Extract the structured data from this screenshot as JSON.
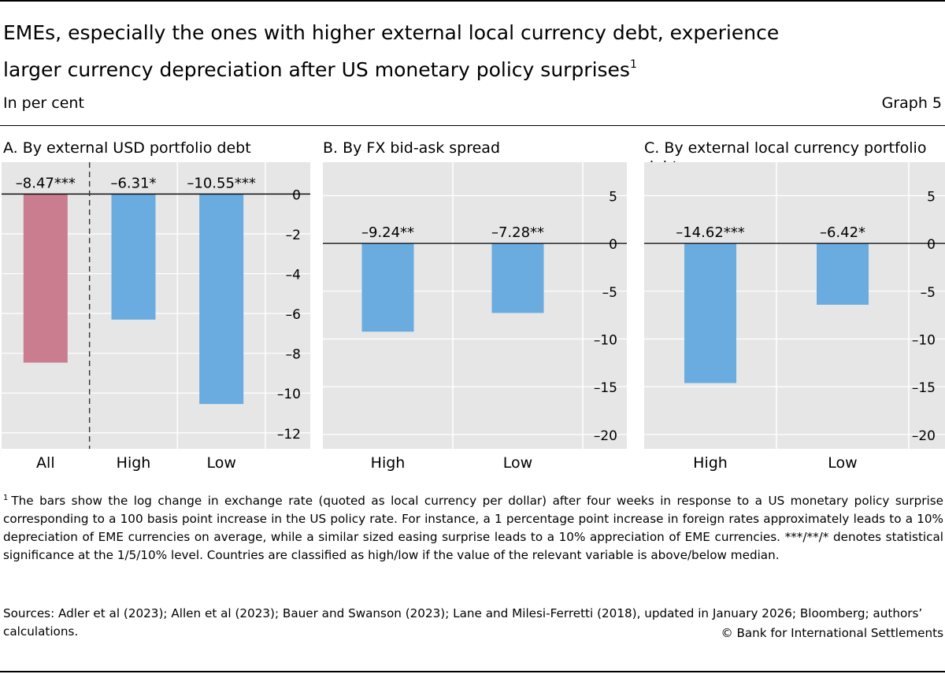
{
  "header": {
    "title_line1": "EMEs, especially the ones with higher external local currency debt, experience",
    "title_line2": "larger currency depreciation after US monetary policy surprises",
    "title_footnote_ref": "1",
    "subtitle": "In per cent",
    "graph_number": "Graph 5"
  },
  "colors": {
    "panel_bg": "#e6e6e6",
    "bar_blue": "#6aace0",
    "bar_pink": "#c97d8e"
  },
  "chart_data": [
    {
      "type": "bar",
      "title": "A. By external USD portfolio debt",
      "categories": [
        "All",
        "High",
        "Low"
      ],
      "values": [
        -8.47,
        -6.31,
        -10.55
      ],
      "value_labels": [
        "–8.47***",
        "–6.31*",
        "–10.55***"
      ],
      "bar_colors": [
        "pink",
        "blue",
        "blue"
      ],
      "ylim": [
        -12.8,
        1.6
      ],
      "yticks": [
        0,
        -2,
        -4,
        -6,
        -8,
        -10,
        -12
      ],
      "ytick_labels": [
        "0",
        "–2",
        "–4",
        "–6",
        "–8",
        "–10",
        "–12"
      ],
      "separator_after_first": true,
      "xlabel": "",
      "ylabel": ""
    },
    {
      "type": "bar",
      "title": "B. By FX bid-ask spread",
      "categories": [
        "High",
        "Low"
      ],
      "values": [
        -9.24,
        -7.28
      ],
      "value_labels": [
        "–9.24**",
        "–7.28**"
      ],
      "bar_colors": [
        "blue",
        "blue"
      ],
      "ylim": [
        -21.5,
        8.5
      ],
      "yticks": [
        5,
        0,
        -5,
        -10,
        -15,
        -20
      ],
      "ytick_labels": [
        "5",
        "0",
        "–5",
        "–10",
        "–15",
        "–20"
      ],
      "xlabel": "",
      "ylabel": ""
    },
    {
      "type": "bar",
      "title": "C. By external local currency portfolio debt",
      "categories": [
        "High",
        "Low"
      ],
      "values": [
        -14.62,
        -6.42
      ],
      "value_labels": [
        "–14.62***",
        "–6.42*"
      ],
      "bar_colors": [
        "blue",
        "blue"
      ],
      "ylim": [
        -21.5,
        8.5
      ],
      "yticks": [
        5,
        0,
        -5,
        -10,
        -15,
        -20
      ],
      "ytick_labels": [
        "5",
        "0",
        "–5",
        "–10",
        "–15",
        "–20"
      ],
      "xlabel": "",
      "ylabel": ""
    }
  ],
  "footnote": {
    "marker": "1",
    "text": "The bars show the log change in exchange rate (quoted as local currency per dollar) after four weeks in response to a US monetary policy surprise corresponding to a 100 basis point increase in the US policy rate. For instance, a 1 percentage point increase in foreign rates approximately leads to a 10% depreciation of EME currencies on average, while a similar sized easing surprise leads to a 10% appreciation of EME currencies. ***/**/* denotes statistical significance at the 1/5/10% level. Countries are classified as high/low if the value of the relevant variable is above/below median."
  },
  "sources": "Sources: Adler et al (2023); Allen et al (2023); Bauer and Swanson (2023); Lane and Milesi-Ferretti (2018), updated in January 2026; Bloomberg; authors’ calculations.",
  "copyright": "© Bank for International Settlements"
}
